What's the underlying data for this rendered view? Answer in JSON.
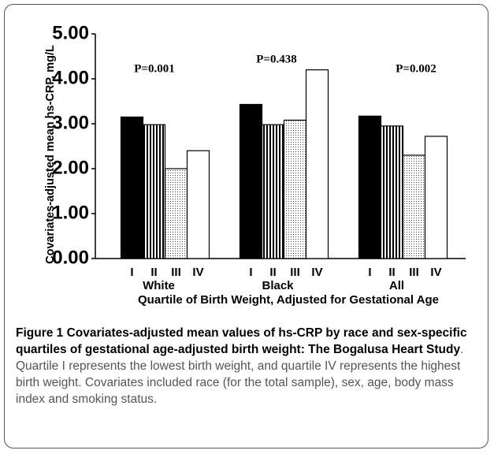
{
  "chart_data": {
    "type": "bar",
    "ylabel": "Covariates-adjusted mean hs-CRP, mg/L",
    "xlabel": "Quartile of Birth Weight, Adjusted for Gestational Age",
    "categories": [
      "White",
      "Black",
      "All"
    ],
    "series": [
      {
        "name": "I",
        "color": "#000000",
        "pattern": "solid",
        "values": [
          3.15,
          3.43,
          3.17
        ]
      },
      {
        "name": "II",
        "color": "#000000",
        "pattern": "vertical-stripes",
        "values": [
          2.98,
          2.98,
          2.95
        ]
      },
      {
        "name": "III",
        "color": "#000000",
        "pattern": "dots",
        "values": [
          2.0,
          3.08,
          2.3
        ]
      },
      {
        "name": "IV",
        "color": "#000000",
        "pattern": "none",
        "values": [
          2.4,
          4.2,
          2.72
        ]
      }
    ],
    "annotations": [
      "P=0.001",
      "P=0.438",
      "P=0.002"
    ],
    "ylim": [
      0,
      5
    ],
    "yticks": [
      {
        "value": 0,
        "label": "0.00"
      },
      {
        "value": 1,
        "label": "1.00"
      },
      {
        "value": 2,
        "label": "2.00"
      },
      {
        "value": 3,
        "label": "3.00"
      },
      {
        "value": 4,
        "label": "4.00"
      },
      {
        "value": 5,
        "label": "5.00"
      }
    ]
  },
  "caption": {
    "title": "Figure 1 Covariates-adjusted mean values of hs-CRP by race and sex-specific quartiles of gestational age-adjusted birth weight: The Bogalusa Heart Study",
    "text": ". Quartile I represents the lowest birth weight, and quartile IV represents the highest birth weight. Covariates included race (for the total sample), sex, age, body mass index and smoking status."
  }
}
